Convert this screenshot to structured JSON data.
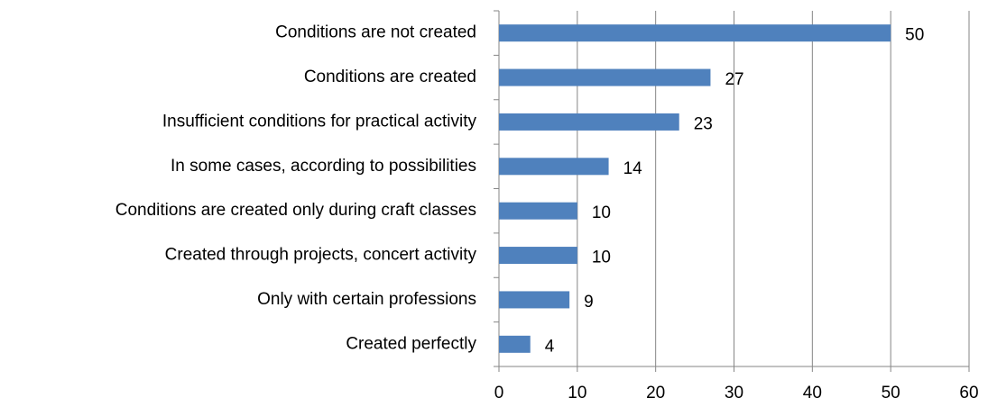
{
  "chart_data": {
    "type": "bar",
    "orientation": "horizontal",
    "categories": [
      "Conditions are not created",
      "Conditions are created",
      "Insufficient conditions for practical activity",
      "In some cases, according to possibilities",
      "Conditions are created only during craft classes",
      "Created through projects, concert activity",
      "Only with certain professions",
      "Created perfectly"
    ],
    "values": [
      50,
      27,
      23,
      14,
      10,
      10,
      9,
      4
    ],
    "color": "#4f81bd",
    "xlim": [
      0,
      60
    ],
    "xticks": [
      0,
      10,
      20,
      30,
      40,
      50,
      60
    ],
    "grid": true
  }
}
